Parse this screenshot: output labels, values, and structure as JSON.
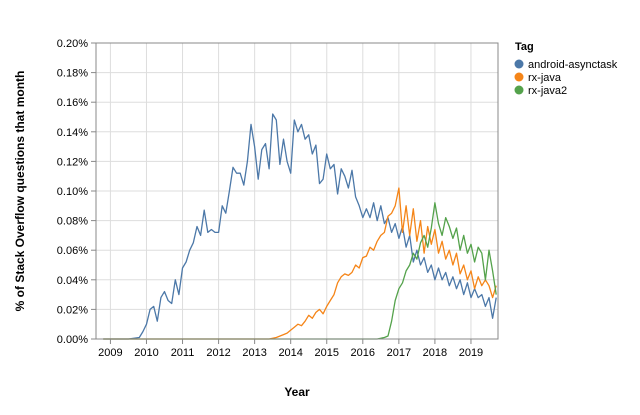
{
  "chart_data": {
    "type": "line",
    "xlabel": "Year",
    "ylabel": "% of Stack Overflow questions that month",
    "xlim": [
      2008.6,
      2019.75
    ],
    "ylim": [
      0,
      0.2
    ],
    "x_ticks": [
      2009,
      2010,
      2011,
      2012,
      2013,
      2014,
      2015,
      2016,
      2017,
      2018,
      2019
    ],
    "y_ticks": [
      0,
      0.02,
      0.04,
      0.06,
      0.08,
      0.1,
      0.12,
      0.14,
      0.16,
      0.18,
      0.2
    ],
    "y_tick_labels": [
      "0.00%",
      "0.02%",
      "0.04%",
      "0.06%",
      "0.08%",
      "0.10%",
      "0.12%",
      "0.14%",
      "0.16%",
      "0.18%",
      "0.20%"
    ],
    "grid": true,
    "legend": {
      "title": "Tag",
      "placement": "right"
    },
    "series": [
      {
        "name": "android-asynctask",
        "color": "#4c78a8",
        "points": [
          [
            2008.8,
            0
          ],
          [
            2009.5,
            0
          ],
          [
            2009.8,
            0.001
          ],
          [
            2009.9,
            0.005
          ],
          [
            2010.0,
            0.01
          ],
          [
            2010.1,
            0.02
          ],
          [
            2010.2,
            0.022
          ],
          [
            2010.3,
            0.012
          ],
          [
            2010.4,
            0.028
          ],
          [
            2010.5,
            0.032
          ],
          [
            2010.6,
            0.026
          ],
          [
            2010.7,
            0.024
          ],
          [
            2010.8,
            0.04
          ],
          [
            2010.9,
            0.03
          ],
          [
            2011.0,
            0.048
          ],
          [
            2011.1,
            0.052
          ],
          [
            2011.2,
            0.06
          ],
          [
            2011.3,
            0.065
          ],
          [
            2011.4,
            0.076
          ],
          [
            2011.5,
            0.07
          ],
          [
            2011.6,
            0.087
          ],
          [
            2011.7,
            0.072
          ],
          [
            2011.8,
            0.074
          ],
          [
            2011.9,
            0.072
          ],
          [
            2012.0,
            0.072
          ],
          [
            2012.1,
            0.09
          ],
          [
            2012.2,
            0.085
          ],
          [
            2012.3,
            0.1
          ],
          [
            2012.4,
            0.116
          ],
          [
            2012.5,
            0.112
          ],
          [
            2012.6,
            0.112
          ],
          [
            2012.7,
            0.104
          ],
          [
            2012.8,
            0.12
          ],
          [
            2012.9,
            0.145
          ],
          [
            2013.0,
            0.13
          ],
          [
            2013.1,
            0.108
          ],
          [
            2013.2,
            0.128
          ],
          [
            2013.3,
            0.132
          ],
          [
            2013.4,
            0.115
          ],
          [
            2013.5,
            0.152
          ],
          [
            2013.6,
            0.148
          ],
          [
            2013.7,
            0.118
          ],
          [
            2013.8,
            0.135
          ],
          [
            2013.9,
            0.12
          ],
          [
            2014.0,
            0.112
          ],
          [
            2014.1,
            0.148
          ],
          [
            2014.2,
            0.14
          ],
          [
            2014.3,
            0.145
          ],
          [
            2014.4,
            0.135
          ],
          [
            2014.5,
            0.138
          ],
          [
            2014.6,
            0.125
          ],
          [
            2014.7,
            0.131
          ],
          [
            2014.8,
            0.105
          ],
          [
            2014.9,
            0.108
          ],
          [
            2015.0,
            0.125
          ],
          [
            2015.1,
            0.115
          ],
          [
            2015.2,
            0.118
          ],
          [
            2015.3,
            0.098
          ],
          [
            2015.4,
            0.115
          ],
          [
            2015.5,
            0.11
          ],
          [
            2015.6,
            0.102
          ],
          [
            2015.7,
            0.114
          ],
          [
            2015.8,
            0.096
          ],
          [
            2015.9,
            0.09
          ],
          [
            2016.0,
            0.082
          ],
          [
            2016.1,
            0.088
          ],
          [
            2016.2,
            0.082
          ],
          [
            2016.3,
            0.092
          ],
          [
            2016.4,
            0.08
          ],
          [
            2016.5,
            0.09
          ],
          [
            2016.6,
            0.078
          ],
          [
            2016.7,
            0.082
          ],
          [
            2016.8,
            0.072
          ],
          [
            2016.9,
            0.078
          ],
          [
            2017.0,
            0.068
          ],
          [
            2017.1,
            0.076
          ],
          [
            2017.2,
            0.062
          ],
          [
            2017.3,
            0.07
          ],
          [
            2017.4,
            0.052
          ],
          [
            2017.5,
            0.06
          ],
          [
            2017.6,
            0.05
          ],
          [
            2017.7,
            0.055
          ],
          [
            2017.8,
            0.045
          ],
          [
            2017.9,
            0.05
          ],
          [
            2018.0,
            0.04
          ],
          [
            2018.1,
            0.048
          ],
          [
            2018.2,
            0.04
          ],
          [
            2018.3,
            0.045
          ],
          [
            2018.4,
            0.036
          ],
          [
            2018.5,
            0.042
          ],
          [
            2018.6,
            0.034
          ],
          [
            2018.7,
            0.04
          ],
          [
            2018.8,
            0.03
          ],
          [
            2018.9,
            0.038
          ],
          [
            2019.0,
            0.028
          ],
          [
            2019.1,
            0.034
          ],
          [
            2019.2,
            0.028
          ],
          [
            2019.3,
            0.03
          ],
          [
            2019.4,
            0.022
          ],
          [
            2019.5,
            0.028
          ],
          [
            2019.6,
            0.014
          ],
          [
            2019.7,
            0.028
          ]
        ]
      },
      {
        "name": "rx-java",
        "color": "#f58518",
        "points": [
          [
            2008.8,
            0
          ],
          [
            2013.4,
            0
          ],
          [
            2013.6,
            0.001
          ],
          [
            2013.8,
            0.003
          ],
          [
            2013.9,
            0.004
          ],
          [
            2014.0,
            0.006
          ],
          [
            2014.1,
            0.008
          ],
          [
            2014.2,
            0.01
          ],
          [
            2014.3,
            0.009
          ],
          [
            2014.4,
            0.012
          ],
          [
            2014.5,
            0.016
          ],
          [
            2014.6,
            0.014
          ],
          [
            2014.7,
            0.018
          ],
          [
            2014.8,
            0.02
          ],
          [
            2014.9,
            0.017
          ],
          [
            2015.0,
            0.022
          ],
          [
            2015.1,
            0.026
          ],
          [
            2015.2,
            0.03
          ],
          [
            2015.3,
            0.038
          ],
          [
            2015.4,
            0.042
          ],
          [
            2015.5,
            0.044
          ],
          [
            2015.6,
            0.043
          ],
          [
            2015.7,
            0.045
          ],
          [
            2015.8,
            0.05
          ],
          [
            2015.9,
            0.048
          ],
          [
            2016.0,
            0.055
          ],
          [
            2016.1,
            0.056
          ],
          [
            2016.2,
            0.062
          ],
          [
            2016.3,
            0.06
          ],
          [
            2016.4,
            0.066
          ],
          [
            2016.5,
            0.07
          ],
          [
            2016.6,
            0.072
          ],
          [
            2016.7,
            0.083
          ],
          [
            2016.8,
            0.085
          ],
          [
            2016.9,
            0.09
          ],
          [
            2017.0,
            0.102
          ],
          [
            2017.1,
            0.072
          ],
          [
            2017.2,
            0.09
          ],
          [
            2017.3,
            0.07
          ],
          [
            2017.4,
            0.088
          ],
          [
            2017.5,
            0.066
          ],
          [
            2017.6,
            0.08
          ],
          [
            2017.7,
            0.058
          ],
          [
            2017.8,
            0.076
          ],
          [
            2017.9,
            0.064
          ],
          [
            2018.0,
            0.074
          ],
          [
            2018.1,
            0.058
          ],
          [
            2018.2,
            0.066
          ],
          [
            2018.3,
            0.054
          ],
          [
            2018.4,
            0.06
          ],
          [
            2018.5,
            0.05
          ],
          [
            2018.6,
            0.058
          ],
          [
            2018.7,
            0.044
          ],
          [
            2018.8,
            0.05
          ],
          [
            2018.9,
            0.04
          ],
          [
            2019.0,
            0.046
          ],
          [
            2019.1,
            0.034
          ],
          [
            2019.2,
            0.042
          ],
          [
            2019.3,
            0.036
          ],
          [
            2019.4,
            0.04
          ],
          [
            2019.5,
            0.036
          ],
          [
            2019.6,
            0.028
          ],
          [
            2019.7,
            0.036
          ]
        ]
      },
      {
        "name": "rx-java2",
        "color": "#54a24b",
        "points": [
          [
            2008.8,
            0
          ],
          [
            2016.4,
            0
          ],
          [
            2016.6,
            0.001
          ],
          [
            2016.7,
            0.002
          ],
          [
            2016.8,
            0.012
          ],
          [
            2016.9,
            0.026
          ],
          [
            2017.0,
            0.034
          ],
          [
            2017.1,
            0.038
          ],
          [
            2017.2,
            0.046
          ],
          [
            2017.3,
            0.05
          ],
          [
            2017.4,
            0.058
          ],
          [
            2017.5,
            0.054
          ],
          [
            2017.6,
            0.065
          ],
          [
            2017.7,
            0.07
          ],
          [
            2017.8,
            0.062
          ],
          [
            2017.9,
            0.075
          ],
          [
            2018.0,
            0.092
          ],
          [
            2018.1,
            0.078
          ],
          [
            2018.2,
            0.07
          ],
          [
            2018.3,
            0.082
          ],
          [
            2018.4,
            0.076
          ],
          [
            2018.5,
            0.068
          ],
          [
            2018.6,
            0.075
          ],
          [
            2018.7,
            0.06
          ],
          [
            2018.8,
            0.07
          ],
          [
            2018.9,
            0.058
          ],
          [
            2019.0,
            0.064
          ],
          [
            2019.1,
            0.052
          ],
          [
            2019.2,
            0.062
          ],
          [
            2019.3,
            0.058
          ],
          [
            2019.4,
            0.04
          ],
          [
            2019.5,
            0.06
          ],
          [
            2019.6,
            0.046
          ],
          [
            2019.7,
            0.03
          ]
        ]
      }
    ]
  }
}
